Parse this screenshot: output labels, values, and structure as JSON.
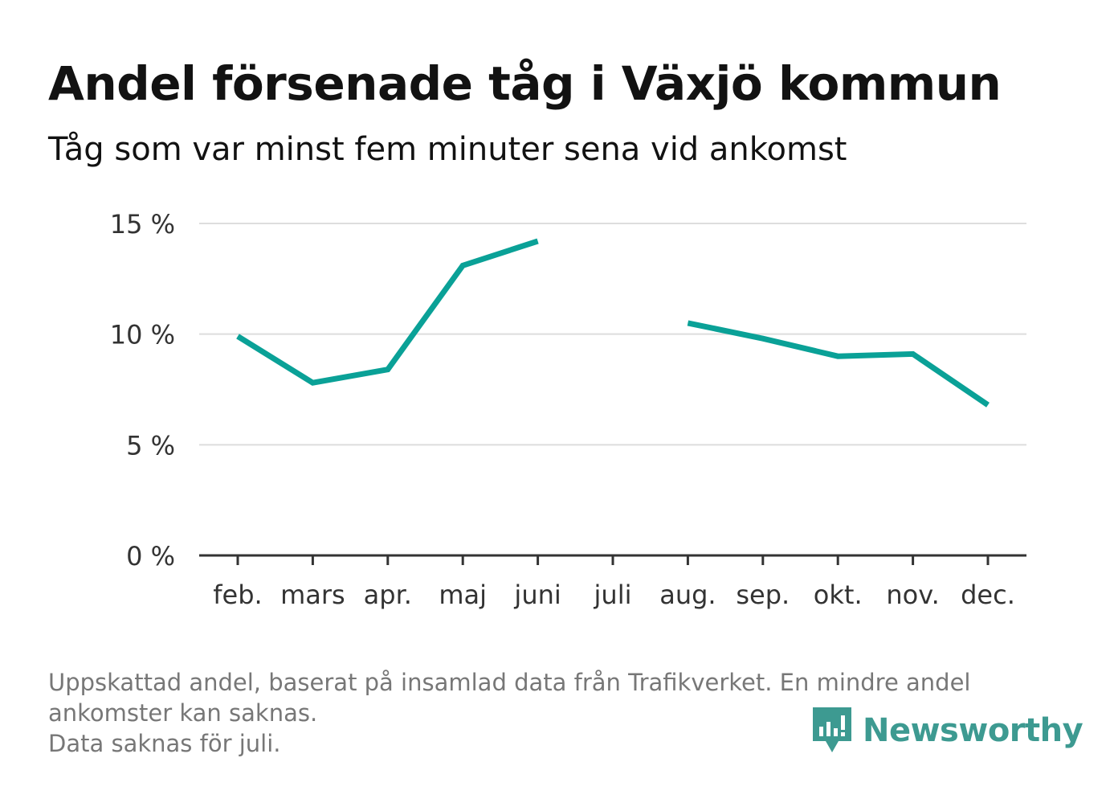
{
  "title": "Andel försenade tåg i Växjö kommun",
  "subtitle": "Tåg som var minst fem minuter sena vid ankomst",
  "footer": {
    "line1": "Uppskattad andel, baserat på insamlad data från Trafikverket. En mindre andel ankomster kan saknas.",
    "line2": "Data saknas för juli."
  },
  "brand": {
    "name": "Newsworthy",
    "icon": "newsworthy-logo-icon",
    "color": "#3d9a91"
  },
  "chart_data": {
    "type": "line",
    "categories": [
      "feb.",
      "mars",
      "apr.",
      "maj",
      "juni",
      "juli",
      "aug.",
      "sep.",
      "okt.",
      "nov.",
      "dec."
    ],
    "series": [
      {
        "values": [
          9.9,
          7.8,
          8.4,
          13.1,
          14.2,
          null,
          10.5,
          9.8,
          9.0,
          9.1,
          6.8
        ]
      }
    ],
    "ylim": [
      0,
      15
    ],
    "yticks": [
      0,
      5,
      10,
      15
    ],
    "ytick_labels": [
      "0 %",
      "5 %",
      "10 %",
      "15 %"
    ],
    "line_color": "#0aa197",
    "grid": true,
    "legend": "none"
  }
}
